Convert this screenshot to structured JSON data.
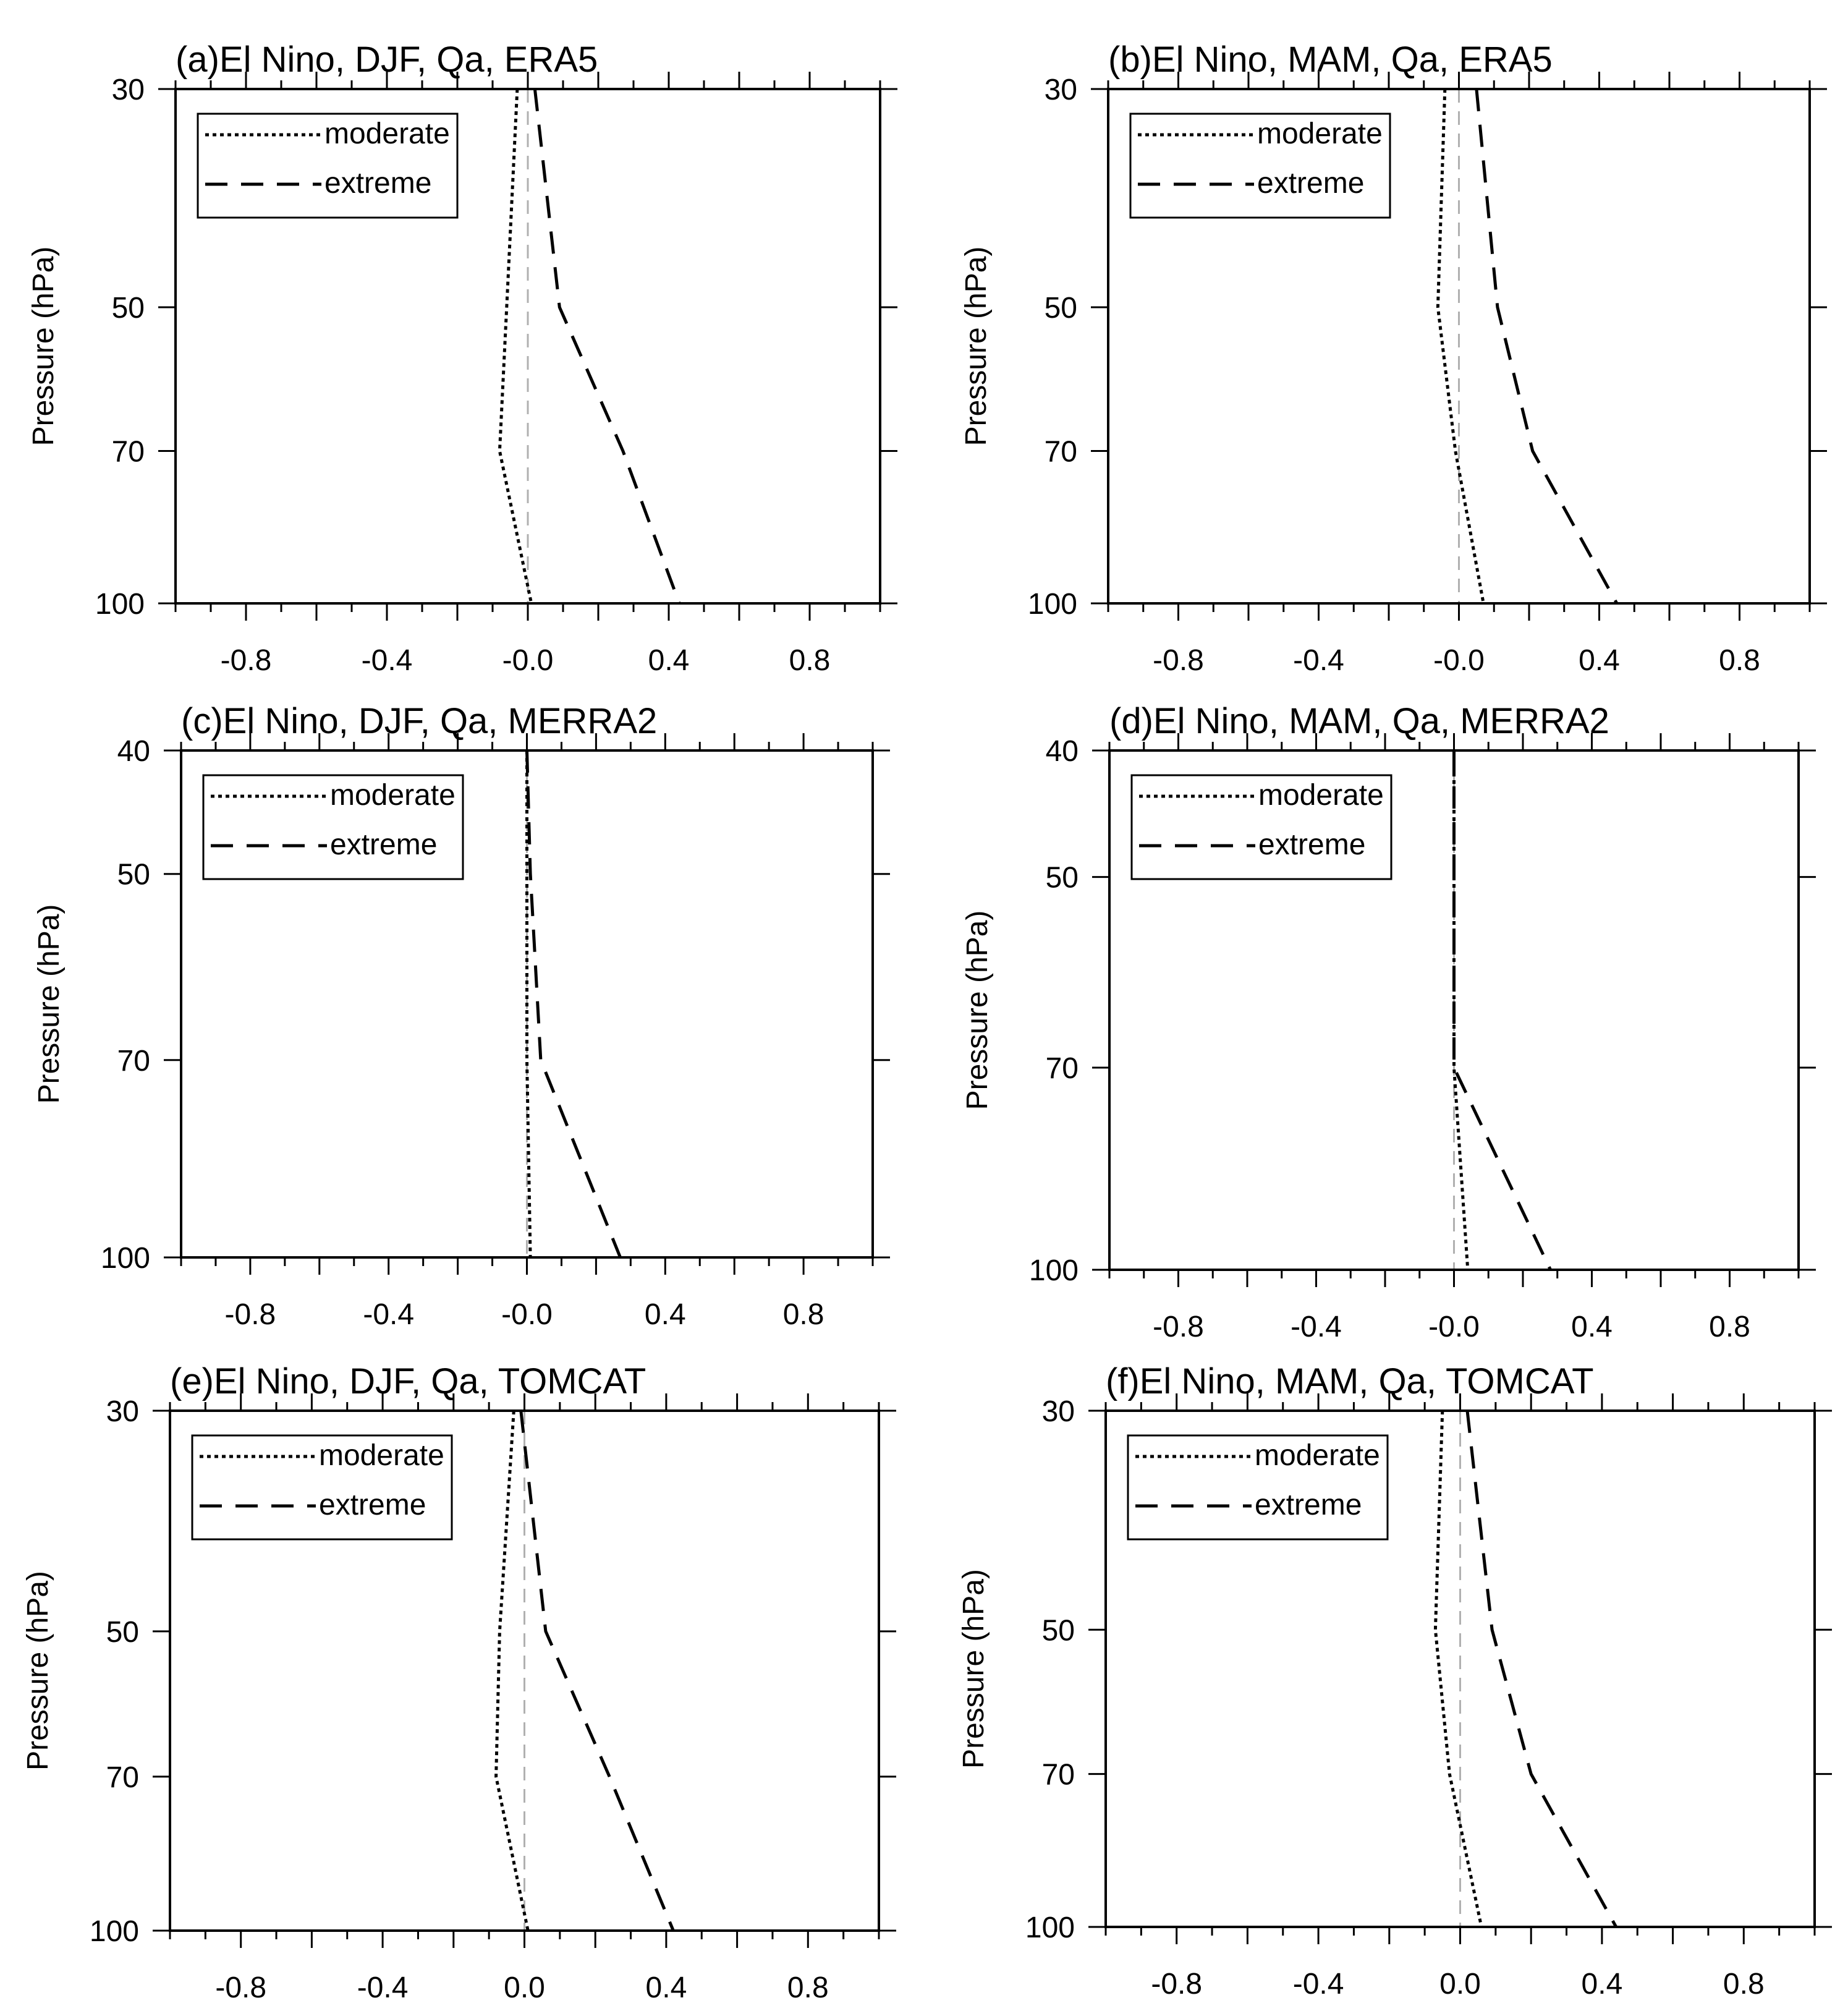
{
  "chart_data": [
    {
      "type": "line",
      "title": "(a)El Nino, DJF, Qa, ERA5",
      "ylabel": "Pressure (hPa)",
      "xlabel": "",
      "xlim": [
        -1.0,
        1.0
      ],
      "xticks": [
        -0.8,
        -0.4,
        0.0,
        0.4,
        0.8
      ],
      "xtick_labels": [
        "-0.8",
        "-0.4",
        "-0.0",
        "0.4",
        "0.8"
      ],
      "yscale": "log",
      "ylim": [
        30,
        100
      ],
      "yticks": [
        30,
        50,
        70,
        100
      ],
      "ytick_labels": [
        "30",
        "50",
        "70",
        "100"
      ],
      "legend": {
        "position": "top-left",
        "entries": [
          "moderate",
          "extreme"
        ]
      },
      "series": [
        {
          "name": "moderate",
          "style": "dotted",
          "points": [
            [
              -0.03,
              30
            ],
            [
              -0.06,
              50
            ],
            [
              -0.08,
              70
            ],
            [
              0.01,
              100
            ]
          ]
        },
        {
          "name": "extreme",
          "style": "dashed",
          "points": [
            [
              0.02,
              30
            ],
            [
              0.09,
              50
            ],
            [
              0.27,
              70
            ],
            [
              0.43,
              100
            ]
          ]
        }
      ],
      "reference_line": 0.0
    },
    {
      "type": "line",
      "title": "(b)El Nino, MAM, Qa, ERA5",
      "ylabel": "Pressure (hPa)",
      "xlabel": "",
      "xlim": [
        -1.0,
        1.0
      ],
      "xticks": [
        -0.8,
        -0.4,
        0.0,
        0.4,
        0.8
      ],
      "xtick_labels": [
        "-0.8",
        "-0.4",
        "-0.0",
        "0.4",
        "0.8"
      ],
      "yscale": "log",
      "ylim": [
        30,
        100
      ],
      "yticks": [
        30,
        50,
        70,
        100
      ],
      "ytick_labels": [
        "30",
        "50",
        "70",
        "100"
      ],
      "legend": {
        "position": "top-left",
        "entries": [
          "moderate",
          "extreme"
        ]
      },
      "series": [
        {
          "name": "moderate",
          "style": "dotted",
          "points": [
            [
              -0.04,
              30
            ],
            [
              -0.06,
              50
            ],
            [
              -0.01,
              70
            ],
            [
              0.07,
              100
            ]
          ]
        },
        {
          "name": "extreme",
          "style": "dashed",
          "points": [
            [
              0.05,
              30
            ],
            [
              0.11,
              50
            ],
            [
              0.21,
              70
            ],
            [
              0.45,
              100
            ]
          ]
        }
      ],
      "reference_line": 0.0
    },
    {
      "type": "line",
      "title": "(c)El Nino, DJF, Qa, MERRA2",
      "ylabel": "Pressure (hPa)",
      "xlabel": "",
      "xlim": [
        -1.0,
        1.0
      ],
      "xticks": [
        -0.8,
        -0.4,
        0.0,
        0.4,
        0.8
      ],
      "xtick_labels": [
        "-0.8",
        "-0.4",
        "-0.0",
        "0.4",
        "0.8"
      ],
      "yscale": "log",
      "ylim": [
        40,
        100
      ],
      "yticks": [
        40,
        50,
        70,
        100
      ],
      "ytick_labels": [
        "40",
        "50",
        "70",
        "100"
      ],
      "legend": {
        "position": "top-left",
        "entries": [
          "moderate",
          "extreme"
        ]
      },
      "series": [
        {
          "name": "moderate",
          "style": "dotted",
          "points": [
            [
              0.0,
              40
            ],
            [
              0.0,
              50
            ],
            [
              0.0,
              70
            ],
            [
              0.01,
              100
            ]
          ]
        },
        {
          "name": "extreme",
          "style": "dashed",
          "points": [
            [
              0.0,
              40
            ],
            [
              0.01,
              50
            ],
            [
              0.04,
              70
            ],
            [
              0.27,
              100
            ]
          ]
        }
      ],
      "reference_line": 0.0
    },
    {
      "type": "line",
      "title": "(d)El Nino, MAM, Qa, MERRA2",
      "ylabel": "Pressure (hPa)",
      "xlabel": "",
      "xlim": [
        -1.0,
        1.0
      ],
      "xticks": [
        -0.8,
        -0.4,
        0.0,
        0.4,
        0.8
      ],
      "xtick_labels": [
        "-0.8",
        "-0.4",
        "-0.0",
        "0.4",
        "0.8"
      ],
      "yscale": "log",
      "ylim": [
        40,
        100
      ],
      "yticks": [
        40,
        50,
        70,
        100
      ],
      "ytick_labels": [
        "40",
        "50",
        "70",
        "100"
      ],
      "legend": {
        "position": "top-left",
        "entries": [
          "moderate",
          "extreme"
        ]
      },
      "series": [
        {
          "name": "moderate",
          "style": "dotted",
          "points": [
            [
              0.0,
              40
            ],
            [
              0.0,
              50
            ],
            [
              0.0,
              70
            ],
            [
              0.04,
              100
            ]
          ]
        },
        {
          "name": "extreme",
          "style": "dashed",
          "points": [
            [
              0.0,
              40
            ],
            [
              0.0,
              50
            ],
            [
              0.0,
              70
            ],
            [
              0.28,
              100
            ]
          ]
        }
      ],
      "reference_line": 0.0
    },
    {
      "type": "line",
      "title": "(e)El Nino, DJF, Qa, TOMCAT",
      "ylabel": "Pressure (hPa)",
      "xlabel": "",
      "xlim": [
        -1.0,
        1.0
      ],
      "xticks": [
        -0.8,
        -0.4,
        0.0,
        0.4,
        0.8
      ],
      "xtick_labels": [
        "-0.8",
        "-0.4",
        "0.0",
        "0.4",
        "0.8"
      ],
      "yscale": "log",
      "ylim": [
        30,
        100
      ],
      "yticks": [
        30,
        50,
        70,
        100
      ],
      "ytick_labels": [
        "30",
        "50",
        "70",
        "100"
      ],
      "legend": {
        "position": "top-left",
        "entries": [
          "moderate",
          "extreme"
        ]
      },
      "series": [
        {
          "name": "moderate",
          "style": "dotted",
          "points": [
            [
              -0.03,
              30
            ],
            [
              -0.07,
              50
            ],
            [
              -0.08,
              70
            ],
            [
              0.01,
              100
            ]
          ]
        },
        {
          "name": "extreme",
          "style": "dashed",
          "points": [
            [
              -0.01,
              30
            ],
            [
              0.06,
              50
            ],
            [
              0.24,
              70
            ],
            [
              0.42,
              100
            ]
          ]
        }
      ],
      "reference_line": 0.0
    },
    {
      "type": "line",
      "title": "(f)El Nino, MAM, Qa, TOMCAT",
      "ylabel": "Pressure (hPa)",
      "xlabel": "",
      "xlim": [
        -1.0,
        1.0
      ],
      "xticks": [
        -0.8,
        -0.4,
        0.0,
        0.4,
        0.8
      ],
      "xtick_labels": [
        "-0.8",
        "-0.4",
        "0.0",
        "0.4",
        "0.8"
      ],
      "yscale": "log",
      "ylim": [
        30,
        100
      ],
      "yticks": [
        30,
        50,
        70,
        100
      ],
      "ytick_labels": [
        "30",
        "50",
        "70",
        "100"
      ],
      "legend": {
        "position": "top-left",
        "entries": [
          "moderate",
          "extreme"
        ]
      },
      "series": [
        {
          "name": "moderate",
          "style": "dotted",
          "points": [
            [
              -0.05,
              30
            ],
            [
              -0.07,
              50
            ],
            [
              -0.03,
              70
            ],
            [
              0.06,
              100
            ]
          ]
        },
        {
          "name": "extreme",
          "style": "dashed",
          "points": [
            [
              0.02,
              30
            ],
            [
              0.09,
              50
            ],
            [
              0.2,
              70
            ],
            [
              0.44,
              100
            ]
          ]
        }
      ],
      "reference_line": 0.0
    }
  ]
}
